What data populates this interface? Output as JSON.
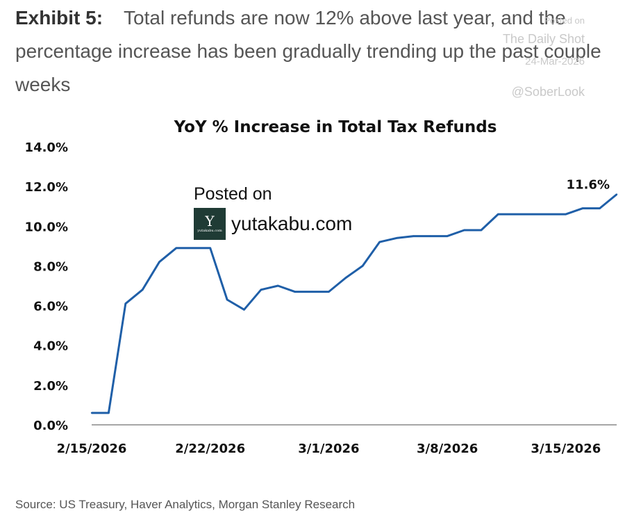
{
  "headline": {
    "exhibit": "Exhibit 5:",
    "text": "Total refunds are now 12% above last year, and the percentage increase has been gradually trending up the past couple weeks"
  },
  "watermark": {
    "posted": "Posted on",
    "source": "The Daily Shot",
    "date": "24-Mar-2026",
    "handle": "@SoberLook"
  },
  "posted_badge": {
    "posted_on": "Posted on",
    "logo_letter": "Y",
    "logo_text": "yutakabu.com",
    "site": "yutakabu.com"
  },
  "source": "Source: US Treasury, Haver Analytics, Morgan Stanley Research",
  "chart_data": {
    "type": "line",
    "title": "YoY % Increase in Total Tax Refunds",
    "xlabel": "",
    "ylabel": "",
    "x": [
      "2/15/2026",
      "2/16/2026",
      "2/17/2026",
      "2/18/2026",
      "2/19/2026",
      "2/20/2026",
      "2/21/2026",
      "2/22/2026",
      "2/23/2026",
      "2/24/2026",
      "2/25/2026",
      "2/26/2026",
      "2/27/2026",
      "2/28/2026",
      "3/1/2026",
      "3/2/2026",
      "3/3/2026",
      "3/4/2026",
      "3/5/2026",
      "3/6/2026",
      "3/7/2026",
      "3/8/2026",
      "3/9/2026",
      "3/10/2026",
      "3/11/2026",
      "3/12/2026",
      "3/13/2026",
      "3/14/2026",
      "3/15/2026",
      "3/16/2026",
      "3/17/2026",
      "3/18/2026"
    ],
    "values": [
      0.6,
      0.6,
      6.1,
      6.8,
      8.2,
      8.9,
      8.9,
      8.9,
      6.3,
      5.8,
      6.8,
      7.0,
      6.7,
      6.7,
      6.7,
      7.4,
      8.0,
      9.2,
      9.4,
      9.5,
      9.5,
      9.5,
      9.8,
      9.8,
      10.6,
      10.6,
      10.6,
      10.6,
      10.6,
      10.9,
      10.9,
      11.6
    ],
    "xticks": [
      "2/15/2026",
      "2/22/2026",
      "3/1/2026",
      "3/8/2026",
      "3/15/2026"
    ],
    "yticks": [
      0,
      2,
      4,
      6,
      8,
      10,
      12,
      14
    ],
    "ytick_labels": [
      "0.0%",
      "2.0%",
      "4.0%",
      "6.0%",
      "8.0%",
      "10.0%",
      "12.0%",
      "14.0%"
    ],
    "ylim": [
      0,
      14
    ],
    "end_label": "11.6%",
    "grid": false,
    "line_color": "#1f5fa8"
  }
}
